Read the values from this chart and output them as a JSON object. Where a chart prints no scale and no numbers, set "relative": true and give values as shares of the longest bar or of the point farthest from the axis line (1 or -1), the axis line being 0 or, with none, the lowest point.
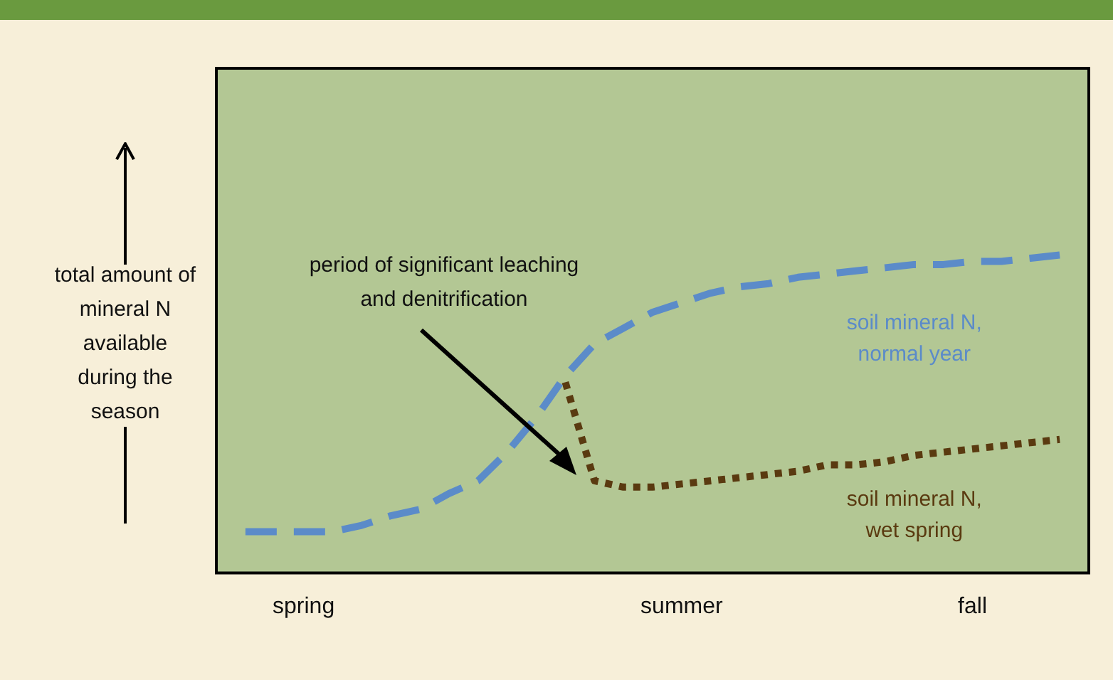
{
  "chart_data": {
    "type": "line",
    "relative": true,
    "ylabel": "total amount of mineral N available during the season",
    "categories": [
      null,
      null,
      null,
      "spring",
      null,
      null,
      null,
      null,
      null,
      null,
      null,
      null,
      null,
      null,
      null,
      null,
      "summer",
      null,
      null,
      null,
      null,
      null,
      null,
      null,
      null,
      null,
      "fall",
      null,
      null,
      null,
      null
    ],
    "series": [
      {
        "name": "soil mineral N, normal year",
        "color": "#5b8bc9",
        "line_style": "dashed",
        "values": [
          null,
          0.13,
          0.13,
          0.13,
          0.13,
          0.15,
          0.18,
          0.2,
          0.25,
          0.29,
          0.38,
          0.49,
          0.62,
          0.72,
          0.77,
          0.82,
          0.85,
          0.88,
          0.9,
          0.91,
          0.93,
          0.94,
          0.95,
          0.96,
          0.97,
          0.97,
          0.98,
          0.98,
          0.99,
          1,
          null
        ]
      },
      {
        "name": "soil mineral N, wet spring",
        "color": "#5a3a10",
        "line_style": "dotted",
        "values": [
          null,
          null,
          null,
          null,
          null,
          null,
          null,
          null,
          null,
          null,
          null,
          null,
          0.6,
          0.29,
          0.27,
          0.27,
          0.28,
          0.29,
          0.3,
          0.31,
          0.32,
          0.34,
          0.34,
          0.35,
          0.37,
          0.38,
          0.39,
          0.4,
          0.41,
          0.42,
          null
        ]
      }
    ],
    "annotations": [
      "period of significant leaching and denitrification"
    ],
    "marker": "none",
    "legend": false,
    "grid": false
  }
}
